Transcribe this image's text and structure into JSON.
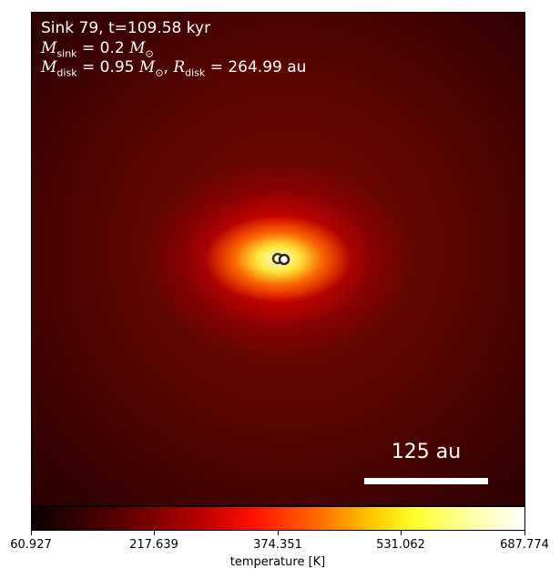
{
  "figure": {
    "sink_line": "Sink 79, t=109.58 kyr",
    "msink_value": "0.2",
    "mdisk_value": "0.95",
    "rdisk_value": "264.99",
    "rdisk_unit": "au",
    "scalebar_label": "125 au",
    "sink_markers": [
      "sink-primary",
      "sink-companion"
    ]
  },
  "colorbar": {
    "label": "temperature [K]",
    "ticks": [
      "60.927",
      "217.639",
      "374.351",
      "531.062",
      "687.774"
    ],
    "colormap": "hot",
    "colors": [
      "#000000",
      "#8b0000",
      "#ff0000",
      "#ff8c00",
      "#ffff00",
      "#ffffff"
    ]
  }
}
